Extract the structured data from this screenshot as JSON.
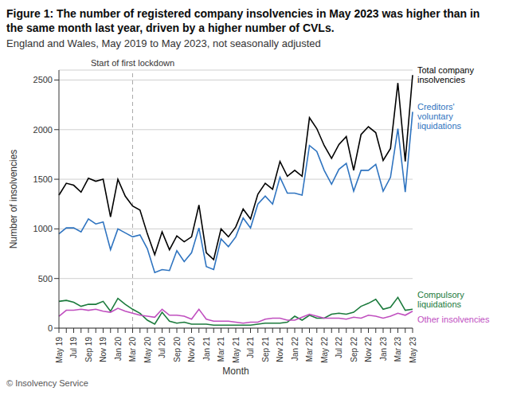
{
  "chart_data": {
    "type": "line",
    "title": "Figure 1: The number of registered company insolvencies in May 2023 was higher than in the same month last year, driven by a higher number of CVLs.",
    "subtitle": "England and Wales, May 2019 to May 2023, not seasonally adjusted",
    "x_label": "Month",
    "y_label": "Number of insolvencies",
    "source": "© Insolvency Service",
    "categories": [
      "May 19",
      null,
      "Jul 19",
      null,
      "Sep 19",
      null,
      "Nov 19",
      null,
      "Jan 20",
      null,
      "Mar 20",
      null,
      "May 20",
      null,
      "Jul 20",
      null,
      "Sep 20",
      null,
      "Nov 20",
      null,
      "Jan 21",
      null,
      "Mar 21",
      null,
      "May 21",
      null,
      "Jul 21",
      null,
      "Sep 21",
      null,
      "Nov 21",
      null,
      "Jan 22",
      null,
      "Mar 22",
      null,
      "May 22",
      null,
      "Jul 22",
      null,
      "Sep 22",
      null,
      "Nov 22",
      null,
      "Jan 23",
      null,
      "Mar 23",
      null,
      "May 23"
    ],
    "series": [
      {
        "name": "Total company insolvencies",
        "color": "#000000",
        "values": [
          1340,
          1460,
          1440,
          1370,
          1510,
          1480,
          1500,
          1120,
          1500,
          1330,
          1230,
          1190,
          950,
          740,
          970,
          790,
          930,
          870,
          920,
          1240,
          760,
          690,
          1000,
          920,
          1020,
          1200,
          1100,
          1350,
          1460,
          1400,
          1680,
          1530,
          1590,
          1530,
          2120,
          2010,
          1840,
          1710,
          1850,
          1930,
          1590,
          1950,
          2030,
          1970,
          1690,
          1810,
          2470,
          1680,
          2550
        ]
      },
      {
        "name": "Creditors' voluntary liquidations",
        "color": "#2f74c0",
        "values": [
          950,
          1010,
          1010,
          970,
          1100,
          1050,
          1070,
          790,
          1000,
          960,
          920,
          940,
          800,
          560,
          590,
          580,
          780,
          670,
          760,
          1010,
          620,
          590,
          900,
          820,
          920,
          1110,
          1010,
          1250,
          1330,
          1250,
          1520,
          1360,
          1360,
          1340,
          1840,
          1780,
          1590,
          1450,
          1600,
          1660,
          1380,
          1590,
          1590,
          1650,
          1380,
          1520,
          2010,
          1370,
          2180
        ]
      },
      {
        "name": "Compulsory liquidations",
        "color": "#1b7a3c",
        "values": [
          270,
          280,
          260,
          220,
          240,
          240,
          270,
          170,
          300,
          240,
          190,
          150,
          80,
          40,
          160,
          70,
          50,
          60,
          40,
          40,
          40,
          30,
          30,
          30,
          30,
          30,
          30,
          40,
          50,
          50,
          50,
          60,
          120,
          80,
          130,
          100,
          100,
          140,
          150,
          140,
          160,
          220,
          250,
          290,
          190,
          210,
          310,
          180,
          190
        ]
      },
      {
        "name": "Other insolvencies",
        "color": "#c04fbf",
        "values": [
          120,
          180,
          180,
          190,
          180,
          190,
          170,
          160,
          200,
          170,
          150,
          130,
          120,
          110,
          190,
          130,
          130,
          120,
          90,
          190,
          90,
          70,
          70,
          70,
          60,
          50,
          60,
          60,
          90,
          100,
          100,
          80,
          80,
          110,
          140,
          120,
          100,
          100,
          100,
          90,
          110,
          100,
          130,
          120,
          100,
          120,
          150,
          130,
          170
        ]
      }
    ],
    "ylim": [
      0,
      2600
    ],
    "yticks": [
      0,
      500,
      1000,
      1500,
      2000,
      2500
    ],
    "grid": true,
    "annotations": [
      {
        "text": "Start of first lockdown",
        "x": "Mar 20"
      }
    ]
  }
}
